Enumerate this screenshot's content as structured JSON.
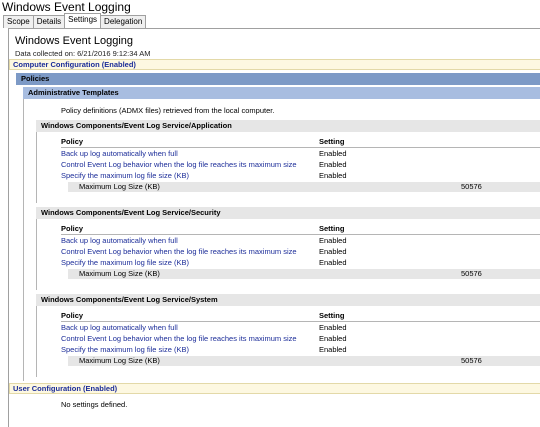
{
  "window_title": "Windows Event Logging",
  "tabs": [
    {
      "label": "Scope",
      "active": false
    },
    {
      "label": "Details",
      "active": false
    },
    {
      "label": "Settings",
      "active": true
    },
    {
      "label": "Delegation",
      "active": false
    }
  ],
  "report": {
    "title": "Windows Event Logging",
    "collected": "Data collected on: 6/21/2016 9:12:34 AM",
    "computer_config": "Computer Configuration (Enabled)",
    "policies": "Policies",
    "admin_templates": "Administrative Templates",
    "admx_note": "Policy definitions (ADMX files) retrieved from the local computer.",
    "policy_header": "Policy",
    "setting_header": "Setting",
    "sections": [
      {
        "title": "Windows Components/Event Log Service/Application",
        "rows": [
          {
            "policy": "Back up log automatically when full",
            "setting": "Enabled"
          },
          {
            "policy": "Control Event Log behavior when the log file reaches its maximum size",
            "setting": "Enabled"
          },
          {
            "policy": "Specify the maximum log file size (KB)",
            "setting": "Enabled"
          }
        ],
        "detail_label": "Maximum Log Size (KB)",
        "detail_value": "50576"
      },
      {
        "title": "Windows Components/Event Log Service/Security",
        "rows": [
          {
            "policy": "Back up log automatically when full",
            "setting": "Enabled"
          },
          {
            "policy": "Control Event Log behavior when the log file reaches its maximum size",
            "setting": "Enabled"
          },
          {
            "policy": "Specify the maximum log file size (KB)",
            "setting": "Enabled"
          }
        ],
        "detail_label": "Maximum Log Size (KB)",
        "detail_value": "50576"
      },
      {
        "title": "Windows Components/Event Log Service/System",
        "rows": [
          {
            "policy": "Back up log automatically when full",
            "setting": "Enabled"
          },
          {
            "policy": "Control Event Log behavior when the log file reaches its maximum size",
            "setting": "Enabled"
          },
          {
            "policy": "Specify the maximum log file size (KB)",
            "setting": "Enabled"
          }
        ],
        "detail_label": "Maximum Log Size (KB)",
        "detail_value": "50576"
      }
    ],
    "user_config": "User Configuration (Enabled)",
    "no_settings": "No settings defined."
  },
  "colors": {
    "link": "#1c2d99",
    "policies_bar": "#7d9ac6",
    "admx_bar": "#a8bde0",
    "config_bar": "#fdf8e1"
  }
}
